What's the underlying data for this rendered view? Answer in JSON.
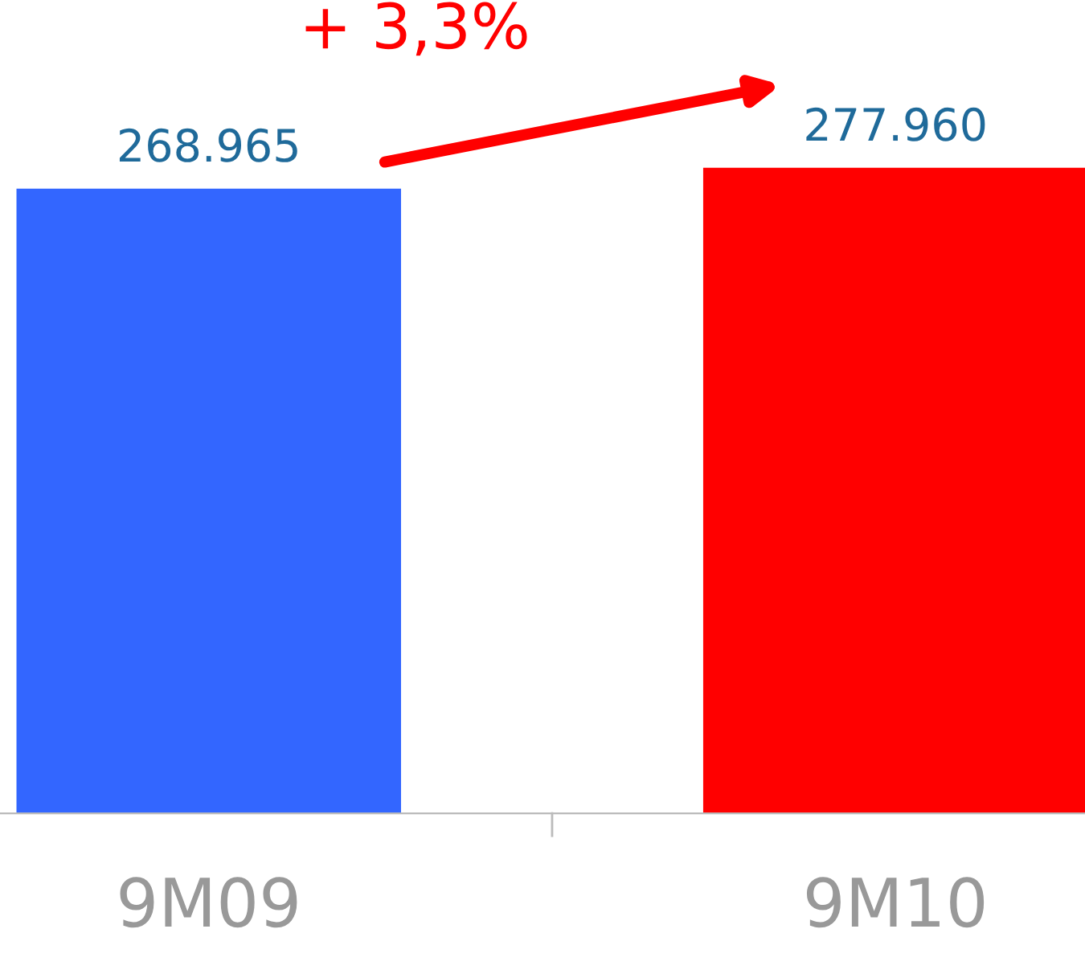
{
  "chart_data": {
    "type": "bar",
    "categories": [
      "9M09",
      "9M10"
    ],
    "values": [
      268965,
      277960
    ],
    "value_labels": [
      "268.965",
      "277.960"
    ],
    "colors": [
      "#3366ff",
      "#ff0000"
    ],
    "annotations": [
      "+ 3,3%"
    ],
    "grid": false,
    "legend": false,
    "tick_labels": "x"
  }
}
